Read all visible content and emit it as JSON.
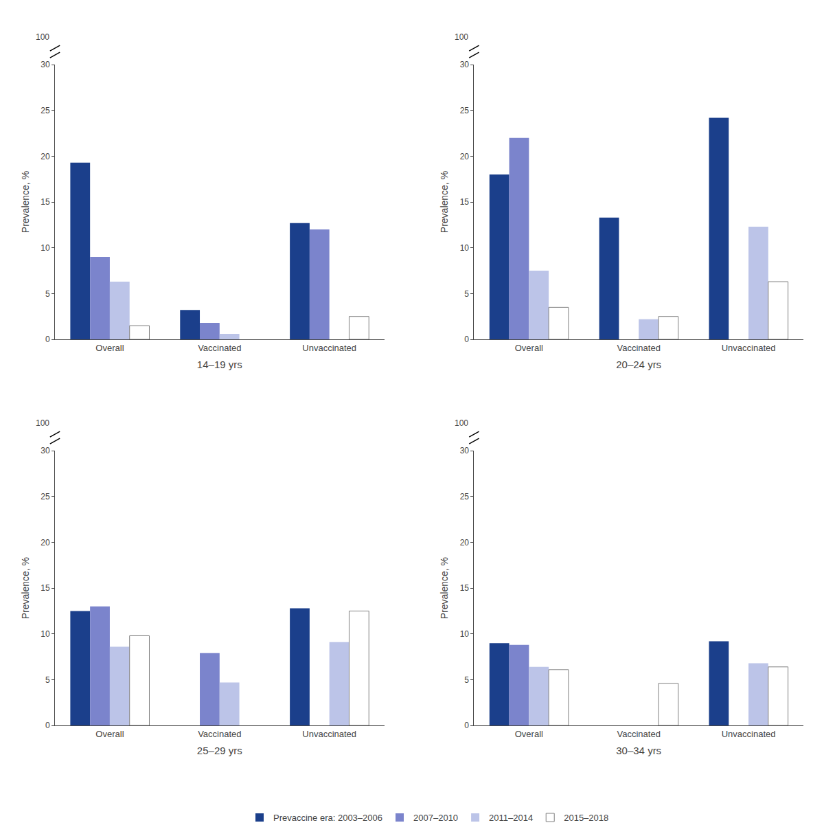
{
  "chart_data": [
    {
      "type": "bar",
      "xlabel": "14–19 yrs",
      "ylabel": "Prevalence, %",
      "categories": [
        "Overall",
        "Vaccinated",
        "Unvaccinated"
      ],
      "series": [
        {
          "name": "Prevaccine era: 2003–2006",
          "color": "#1b3f8b",
          "values": [
            19.3,
            3.2,
            12.7
          ]
        },
        {
          "name": "2007–2010",
          "color": "#7b84cc",
          "values": [
            9.0,
            1.8,
            12.0
          ]
        },
        {
          "name": "2011–2014",
          "color": "#bcc4e8",
          "values": [
            6.3,
            0.6,
            null
          ]
        },
        {
          "name": "2015–2018",
          "color": "#ffffff",
          "values": [
            1.5,
            null,
            2.5
          ]
        }
      ],
      "ylim": [
        0,
        30
      ],
      "yticks": [
        0,
        5,
        10,
        15,
        20,
        25,
        30
      ],
      "annotations": [
        {
          "text": "100"
        }
      ],
      "grid": false,
      "legend": "bottom"
    },
    {
      "type": "bar",
      "xlabel": "20–24 yrs",
      "ylabel": "Prevalence, %",
      "categories": [
        "Overall",
        "Vaccinated",
        "Unvaccinated"
      ],
      "series": [
        {
          "name": "Prevaccine era: 2003–2006",
          "color": "#1b3f8b",
          "values": [
            18.0,
            13.3,
            24.2
          ]
        },
        {
          "name": "2007–2010",
          "color": "#7b84cc",
          "values": [
            22.0,
            null,
            null
          ]
        },
        {
          "name": "2011–2014",
          "color": "#bcc4e8",
          "values": [
            7.5,
            2.2,
            12.3
          ]
        },
        {
          "name": "2015–2018",
          "color": "#ffffff",
          "values": [
            3.5,
            2.5,
            6.3
          ]
        }
      ],
      "ylim": [
        0,
        30
      ],
      "yticks": [
        0,
        5,
        10,
        15,
        20,
        25,
        30
      ],
      "annotations": [
        {
          "text": "100"
        }
      ],
      "grid": false,
      "legend": "bottom"
    },
    {
      "type": "bar",
      "xlabel": "25–29 yrs",
      "ylabel": "Prevalence, %",
      "categories": [
        "Overall",
        "Vaccinated",
        "Unvaccinated"
      ],
      "series": [
        {
          "name": "Prevaccine era: 2003–2006",
          "color": "#1b3f8b",
          "values": [
            12.5,
            null,
            12.8
          ]
        },
        {
          "name": "2007–2010",
          "color": "#7b84cc",
          "values": [
            13.0,
            7.9,
            null
          ]
        },
        {
          "name": "2011–2014",
          "color": "#bcc4e8",
          "values": [
            8.6,
            4.7,
            9.1
          ]
        },
        {
          "name": "2015–2018",
          "color": "#ffffff",
          "values": [
            9.8,
            null,
            12.5
          ]
        }
      ],
      "ylim": [
        0,
        30
      ],
      "yticks": [
        0,
        5,
        10,
        15,
        20,
        25,
        30
      ],
      "annotations": [
        {
          "text": "100"
        }
      ],
      "grid": false,
      "legend": "bottom"
    },
    {
      "type": "bar",
      "xlabel": "30–34 yrs",
      "ylabel": "Prevalence, %",
      "categories": [
        "Overall",
        "Vaccinated",
        "Unvaccinated"
      ],
      "series": [
        {
          "name": "Prevaccine era: 2003–2006",
          "color": "#1b3f8b",
          "values": [
            9.0,
            null,
            9.2
          ]
        },
        {
          "name": "2007–2010",
          "color": "#7b84cc",
          "values": [
            8.8,
            null,
            null
          ]
        },
        {
          "name": "2011–2014",
          "color": "#bcc4e8",
          "values": [
            6.4,
            null,
            6.8
          ]
        },
        {
          "name": "2015–2018",
          "color": "#ffffff",
          "values": [
            6.1,
            4.6,
            6.4
          ]
        }
      ],
      "ylim": [
        0,
        30
      ],
      "yticks": [
        0,
        5,
        10,
        15,
        20,
        25,
        30
      ],
      "annotations": [
        {
          "text": "100"
        }
      ],
      "grid": false,
      "legend": "bottom"
    }
  ]
}
